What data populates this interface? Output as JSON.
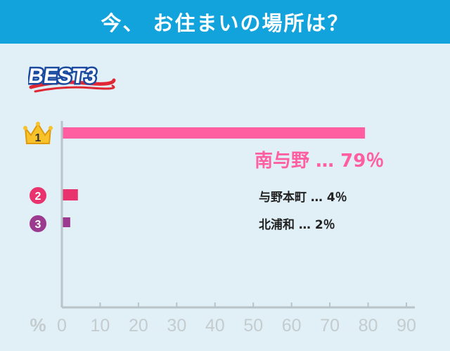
{
  "header": {
    "title": "今、 お住まいの場所は？"
  },
  "badge": {
    "text": "BEST3"
  },
  "colors": {
    "header_bg": "#12a3dc",
    "background": "#e0f0f6",
    "rank1": "#ff5fa0",
    "rank2": "#e8336e",
    "rank3": "#9b3a8e",
    "axis": "#b8c4c8",
    "tick_label": "#c4cccf"
  },
  "ranks": [
    {
      "number": "1",
      "icon": "crown-icon"
    },
    {
      "number": "2",
      "icon": "rank-circle-icon"
    },
    {
      "number": "3",
      "icon": "rank-circle-icon"
    }
  ],
  "chart_data": {
    "type": "bar",
    "orientation": "horizontal",
    "categories": [
      "南与野",
      "与野本町",
      "北浦和"
    ],
    "values": [
      79,
      4,
      2
    ],
    "unit": "%",
    "labels": [
      "南与野  …  79％",
      "与野本町  …  4％",
      "北浦和  …  2％"
    ],
    "xlabel": "%",
    "xlim": [
      0,
      90
    ],
    "ticks": [
      0,
      10,
      20,
      30,
      40,
      50,
      60,
      70,
      80,
      90
    ],
    "grid": false,
    "legend": "none"
  }
}
